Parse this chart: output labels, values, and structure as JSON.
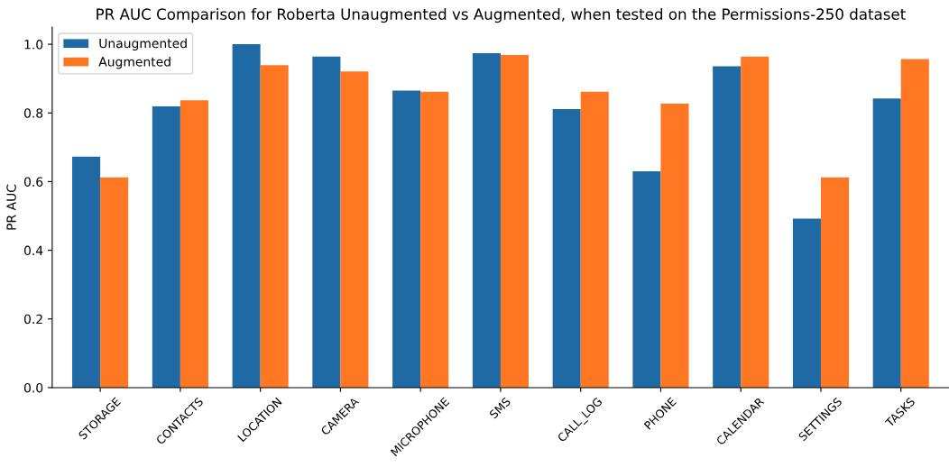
{
  "chart_data": {
    "type": "bar",
    "title": "PR AUC Comparison for Roberta Unaugmented vs Augmented, when tested on the Permissions-250 dataset",
    "ylabel": "PR AUC",
    "categories": [
      "STORAGE",
      "CONTACTS",
      "LOCATION",
      "CAMERA",
      "MICROPHONE",
      "SMS",
      "CALL_LOG",
      "PHONE",
      "CALENDAR",
      "SETTINGS",
      "TASKS"
    ],
    "series": [
      {
        "name": "Unaugmented",
        "color": "#1f6aa5",
        "values": [
          0.673,
          0.819,
          1.0,
          0.964,
          0.865,
          0.974,
          0.811,
          0.63,
          0.936,
          0.492,
          0.842
        ]
      },
      {
        "name": "Augmented",
        "color": "#ff7722",
        "values": [
          0.612,
          0.837,
          0.939,
          0.921,
          0.862,
          0.969,
          0.862,
          0.827,
          0.964,
          0.612,
          0.957
        ]
      }
    ],
    "ylim": [
      0,
      1.05
    ],
    "yticks": [
      {
        "value": 0,
        "label": "0.0"
      },
      {
        "value": 0.2,
        "label": "0.2"
      },
      {
        "value": 0.4,
        "label": "0.4"
      },
      {
        "value": 0.6,
        "label": "0.6"
      },
      {
        "value": 0.8,
        "label": "0.8"
      },
      {
        "value": 1.0,
        "label": "1.0"
      }
    ],
    "grid": false,
    "legend": "top left"
  }
}
